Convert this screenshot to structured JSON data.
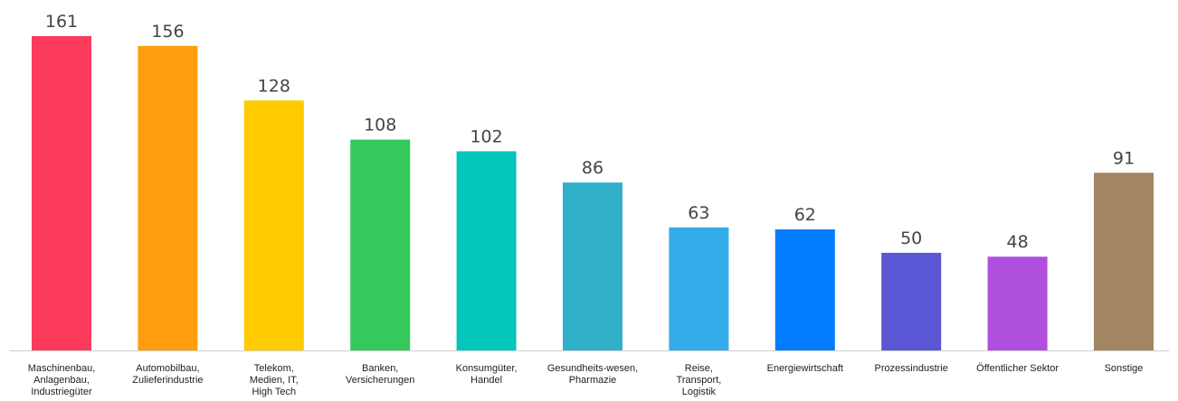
{
  "chart_data": {
    "type": "bar",
    "categories": [
      [
        "Maschinenbau,",
        "Anlagenbau,",
        "Industriegüter"
      ],
      [
        "Automobilbau,",
        "Zulieferindustrie"
      ],
      [
        "Telekom,",
        "Medien, IT,",
        "High Tech"
      ],
      [
        "Banken,",
        "Versicherungen"
      ],
      [
        "Konsumgüter,",
        "Handel"
      ],
      [
        "Gesundheits-wesen,",
        "Pharmazie"
      ],
      [
        "Reise,",
        "Transport,",
        "Logistik"
      ],
      [
        "Energiewirtschaft"
      ],
      [
        "Prozessindustrie"
      ],
      [
        "Öffentlicher Sektor"
      ],
      [
        "Sonstige"
      ]
    ],
    "values": [
      161,
      156,
      128,
      108,
      102,
      86,
      63,
      62,
      50,
      48,
      91
    ],
    "colors": [
      "#fc3a5b",
      "#fe9e0f",
      "#fecb00",
      "#33c95b",
      "#04c6bb",
      "#30b0c8",
      "#33ace9",
      "#027bff",
      "#5a56d4",
      "#b04ede",
      "#a28561"
    ],
    "axis_color": "#d0d0d0",
    "title": "",
    "xlabel": "",
    "ylabel": "",
    "ylim": [
      0,
      161
    ],
    "grid": false,
    "legend": "none"
  }
}
